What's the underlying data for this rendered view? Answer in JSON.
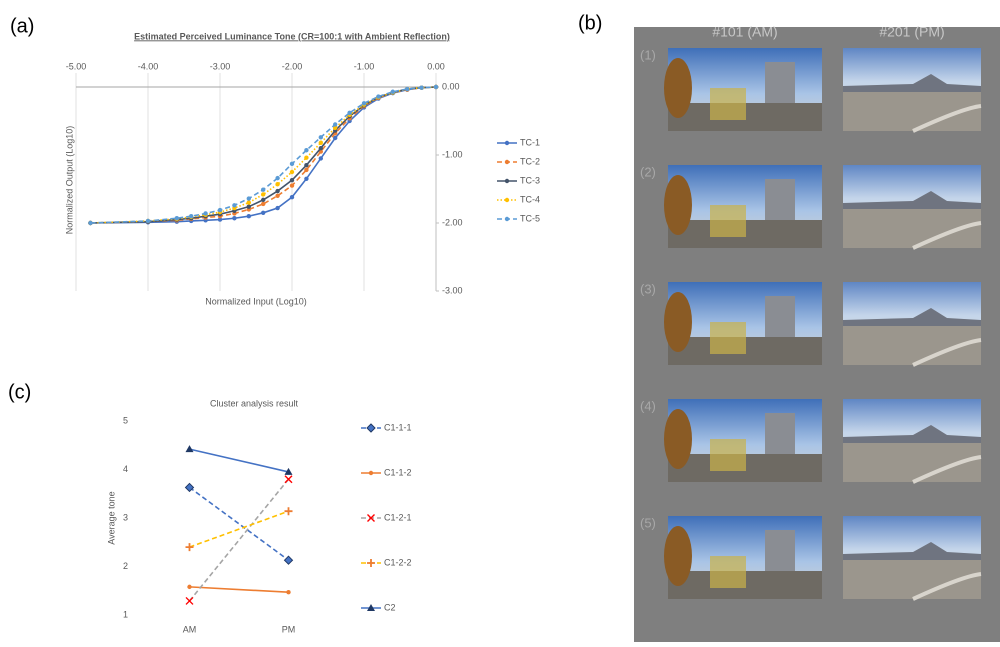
{
  "panel_labels": [
    "(a)",
    "(b)",
    "(c)"
  ],
  "photo_grid": {
    "columns": [
      "#101 (AM)",
      "#201 (PM)"
    ],
    "rows": [
      "(1)",
      "(2)",
      "(3)",
      "(4)",
      "(5)"
    ]
  },
  "chart_data": [
    {
      "type": "line",
      "title": "Estimated Perceived Luminance Tone (CR=100:1 with Ambient Reflection)",
      "x_label": "Normalized Input (Log10)",
      "y_label": "Normalized Output (Log10)",
      "xlim": [
        -5,
        0
      ],
      "ylim": [
        -3,
        0
      ],
      "xticks": [
        {
          "value": -5,
          "label": "-5.00"
        },
        {
          "value": -4,
          "label": "-4.00"
        },
        {
          "value": -3,
          "label": "-3.00"
        },
        {
          "value": -2,
          "label": "-2.00"
        },
        {
          "value": -1,
          "label": "-1.00"
        },
        {
          "value": 0,
          "label": "0.00"
        }
      ],
      "yticks": [
        {
          "value": 0,
          "label": "0.00"
        },
        {
          "value": -1,
          "label": "-1.00"
        },
        {
          "value": -2,
          "label": "-2.00"
        },
        {
          "value": -3,
          "label": "-3.00"
        }
      ],
      "grid": true,
      "legend": "right",
      "x": [
        -4.8,
        -4.0,
        -3.6,
        -3.4,
        -3.2,
        -3.0,
        -2.8,
        -2.6,
        -2.4,
        -2.2,
        -2.0,
        -1.8,
        -1.6,
        -1.4,
        -1.2,
        -1.0,
        -0.8,
        -0.6,
        -0.4,
        -0.2,
        0.0
      ],
      "series": [
        {
          "name": "TC-1",
          "color": "#4472c4",
          "style": "solid",
          "marker": "circle",
          "values": [
            -2.0,
            -1.99,
            -1.98,
            -1.97,
            -1.96,
            -1.95,
            -1.93,
            -1.9,
            -1.85,
            -1.78,
            -1.62,
            -1.35,
            -1.05,
            -0.75,
            -0.5,
            -0.3,
            -0.17,
            -0.09,
            -0.04,
            -0.01,
            0.0
          ]
        },
        {
          "name": "TC-2",
          "color": "#ed7d31",
          "style": "dashed",
          "marker": "circle",
          "values": [
            -2.0,
            -1.98,
            -1.96,
            -1.94,
            -1.92,
            -1.9,
            -1.86,
            -1.8,
            -1.72,
            -1.6,
            -1.45,
            -1.22,
            -0.95,
            -0.68,
            -0.46,
            -0.28,
            -0.16,
            -0.08,
            -0.04,
            -0.01,
            0.0
          ]
        },
        {
          "name": "TC-3",
          "color": "#44546a",
          "style": "solid",
          "marker": "circle",
          "values": [
            -2.0,
            -1.98,
            -1.95,
            -1.93,
            -1.9,
            -1.87,
            -1.82,
            -1.76,
            -1.66,
            -1.53,
            -1.37,
            -1.15,
            -0.9,
            -0.64,
            -0.43,
            -0.27,
            -0.15,
            -0.08,
            -0.03,
            -0.01,
            0.0
          ]
        },
        {
          "name": "TC-4",
          "color": "#ffc000",
          "style": "dotted",
          "marker": "circle",
          "values": [
            -2.0,
            -1.97,
            -1.94,
            -1.91,
            -1.88,
            -1.84,
            -1.78,
            -1.7,
            -1.58,
            -1.43,
            -1.25,
            -1.04,
            -0.82,
            -0.6,
            -0.41,
            -0.26,
            -0.15,
            -0.08,
            -0.03,
            -0.01,
            0.0
          ]
        },
        {
          "name": "TC-5",
          "color": "#5b9bd5",
          "style": "dashed",
          "marker": "circle",
          "values": [
            -2.0,
            -1.97,
            -1.93,
            -1.9,
            -1.86,
            -1.81,
            -1.74,
            -1.64,
            -1.51,
            -1.34,
            -1.13,
            -0.93,
            -0.74,
            -0.55,
            -0.38,
            -0.24,
            -0.14,
            -0.07,
            -0.03,
            -0.01,
            0.0
          ]
        }
      ]
    },
    {
      "type": "line",
      "title": "Cluster analysis result",
      "y_label": "Average tone",
      "categories": [
        "AM",
        "PM"
      ],
      "ylim": [
        1,
        5
      ],
      "yticks": [
        1,
        2,
        3,
        4,
        5
      ],
      "grid": false,
      "legend": "right",
      "series": [
        {
          "name": "C1-1-1",
          "color": "#4472c4",
          "marker_color": "#1f3864",
          "style": "dashed",
          "marker": "diamond",
          "values": [
            3.63,
            2.13
          ]
        },
        {
          "name": "C1-1-2",
          "color": "#ed7d31",
          "marker_color": "#ed7d31",
          "style": "solid",
          "marker": "circle",
          "values": [
            1.58,
            1.47
          ]
        },
        {
          "name": "C1-2-1",
          "color": "#a5a5a5",
          "marker_color": "#ff0000",
          "style": "dashed",
          "marker": "x",
          "values": [
            1.29,
            3.8
          ]
        },
        {
          "name": "C1-2-2",
          "color": "#ffc000",
          "marker_color": "#ed7d31",
          "style": "dashed",
          "marker": "plus",
          "values": [
            2.4,
            3.14
          ]
        },
        {
          "name": "C2",
          "color": "#4472c4",
          "marker_color": "#1f3864",
          "style": "solid",
          "marker": "triangle",
          "values": [
            4.42,
            3.95
          ]
        }
      ]
    }
  ]
}
